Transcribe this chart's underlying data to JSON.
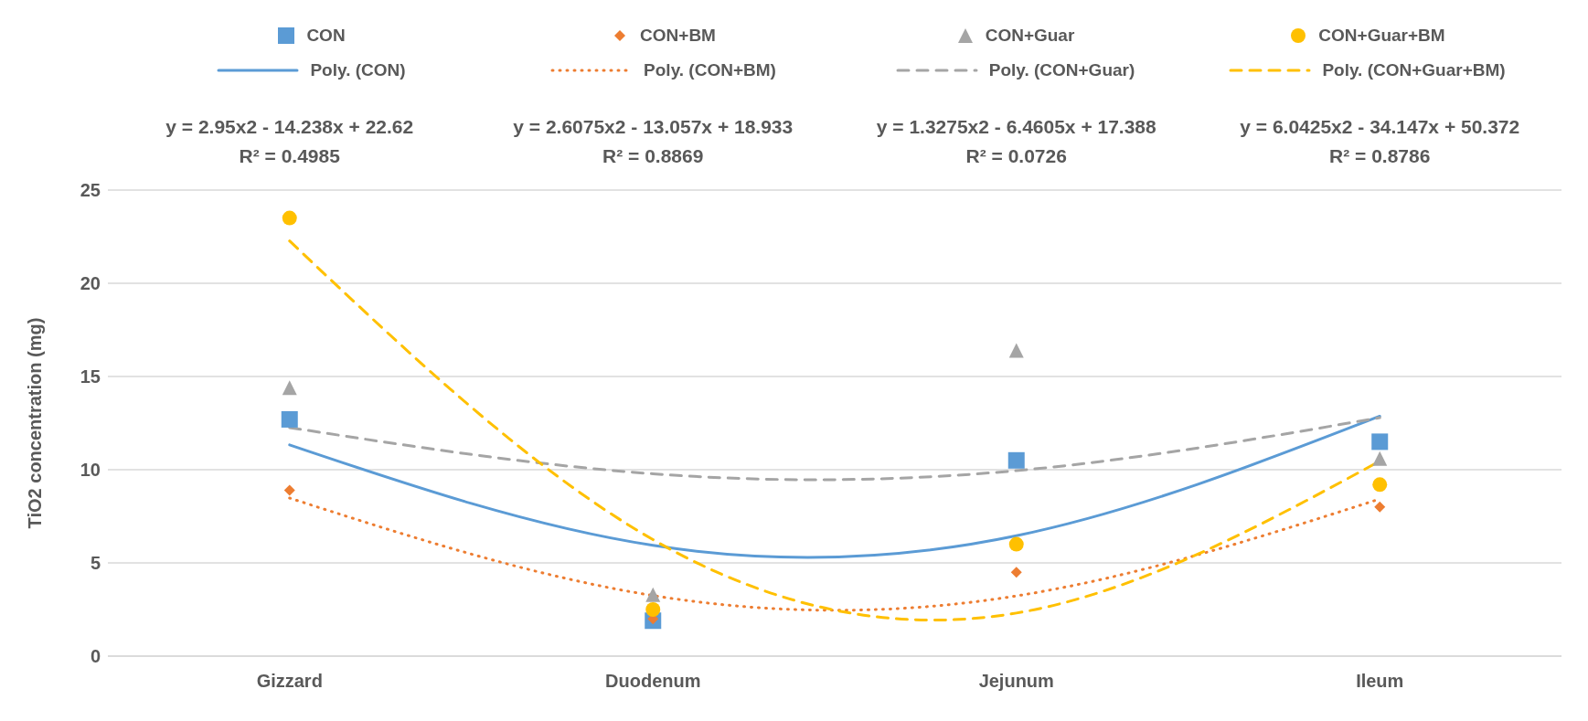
{
  "chart_data": {
    "type": "scatter",
    "categories": [
      "Gizzard",
      "Duodenum",
      "Jejunum",
      "Ileum"
    ],
    "ylabel": "TiO2 concentration (mg)",
    "ylim": [
      0,
      25
    ],
    "yticks": [
      0,
      5,
      10,
      15,
      20,
      25
    ],
    "grid": "y",
    "legend": "top",
    "series": [
      {
        "name": "CON",
        "marker": "square",
        "color": "#5b9bd5",
        "values": [
          12.7,
          1.9,
          10.5,
          11.5
        ]
      },
      {
        "name": "CON+BM",
        "marker": "diamond",
        "color": "#ed7d31",
        "values": [
          8.9,
          2.0,
          4.5,
          8.0
        ]
      },
      {
        "name": "CON+Guar",
        "marker": "triangle",
        "color": "#a5a5a5",
        "values": [
          14.4,
          3.3,
          16.4,
          10.6
        ]
      },
      {
        "name": "CON+Guar+BM",
        "marker": "circle",
        "color": "#ffc000",
        "values": [
          23.5,
          2.5,
          6.0,
          9.2
        ]
      },
      {
        "name": "Poly. (CON)",
        "type": "line",
        "line_style": "solid",
        "color": "#5b9bd5",
        "values": [
          11.33,
          5.94,
          6.46,
          12.87
        ]
      },
      {
        "name": "Poly. (CON+BM)",
        "type": "line",
        "line_style": "dotted",
        "color": "#ed7d31",
        "values": [
          8.48,
          3.25,
          3.23,
          8.43
        ]
      },
      {
        "name": "Poly. (CON+Guar)",
        "type": "line",
        "line_style": "dashed",
        "color": "#a5a5a5",
        "values": [
          12.26,
          9.78,
          9.95,
          12.79
        ]
      },
      {
        "name": "Poly. (CON+Guar+BM)",
        "type": "line",
        "line_style": "dashed",
        "color": "#ffc000",
        "values": [
          22.27,
          6.25,
          2.31,
          10.46
        ]
      }
    ],
    "annotations": [
      "y = 2.95x2 - 14.238x + 22.62\nR² = 0.4985",
      "y = 2.6075x2 - 13.057x + 18.933\nR² = 0.8869",
      "y = 1.3275x2 - 6.4605x + 17.388\nR² = 0.0726",
      "y = 6.0425x2 - 34.147x + 50.372\nR² = 0.8786"
    ]
  }
}
